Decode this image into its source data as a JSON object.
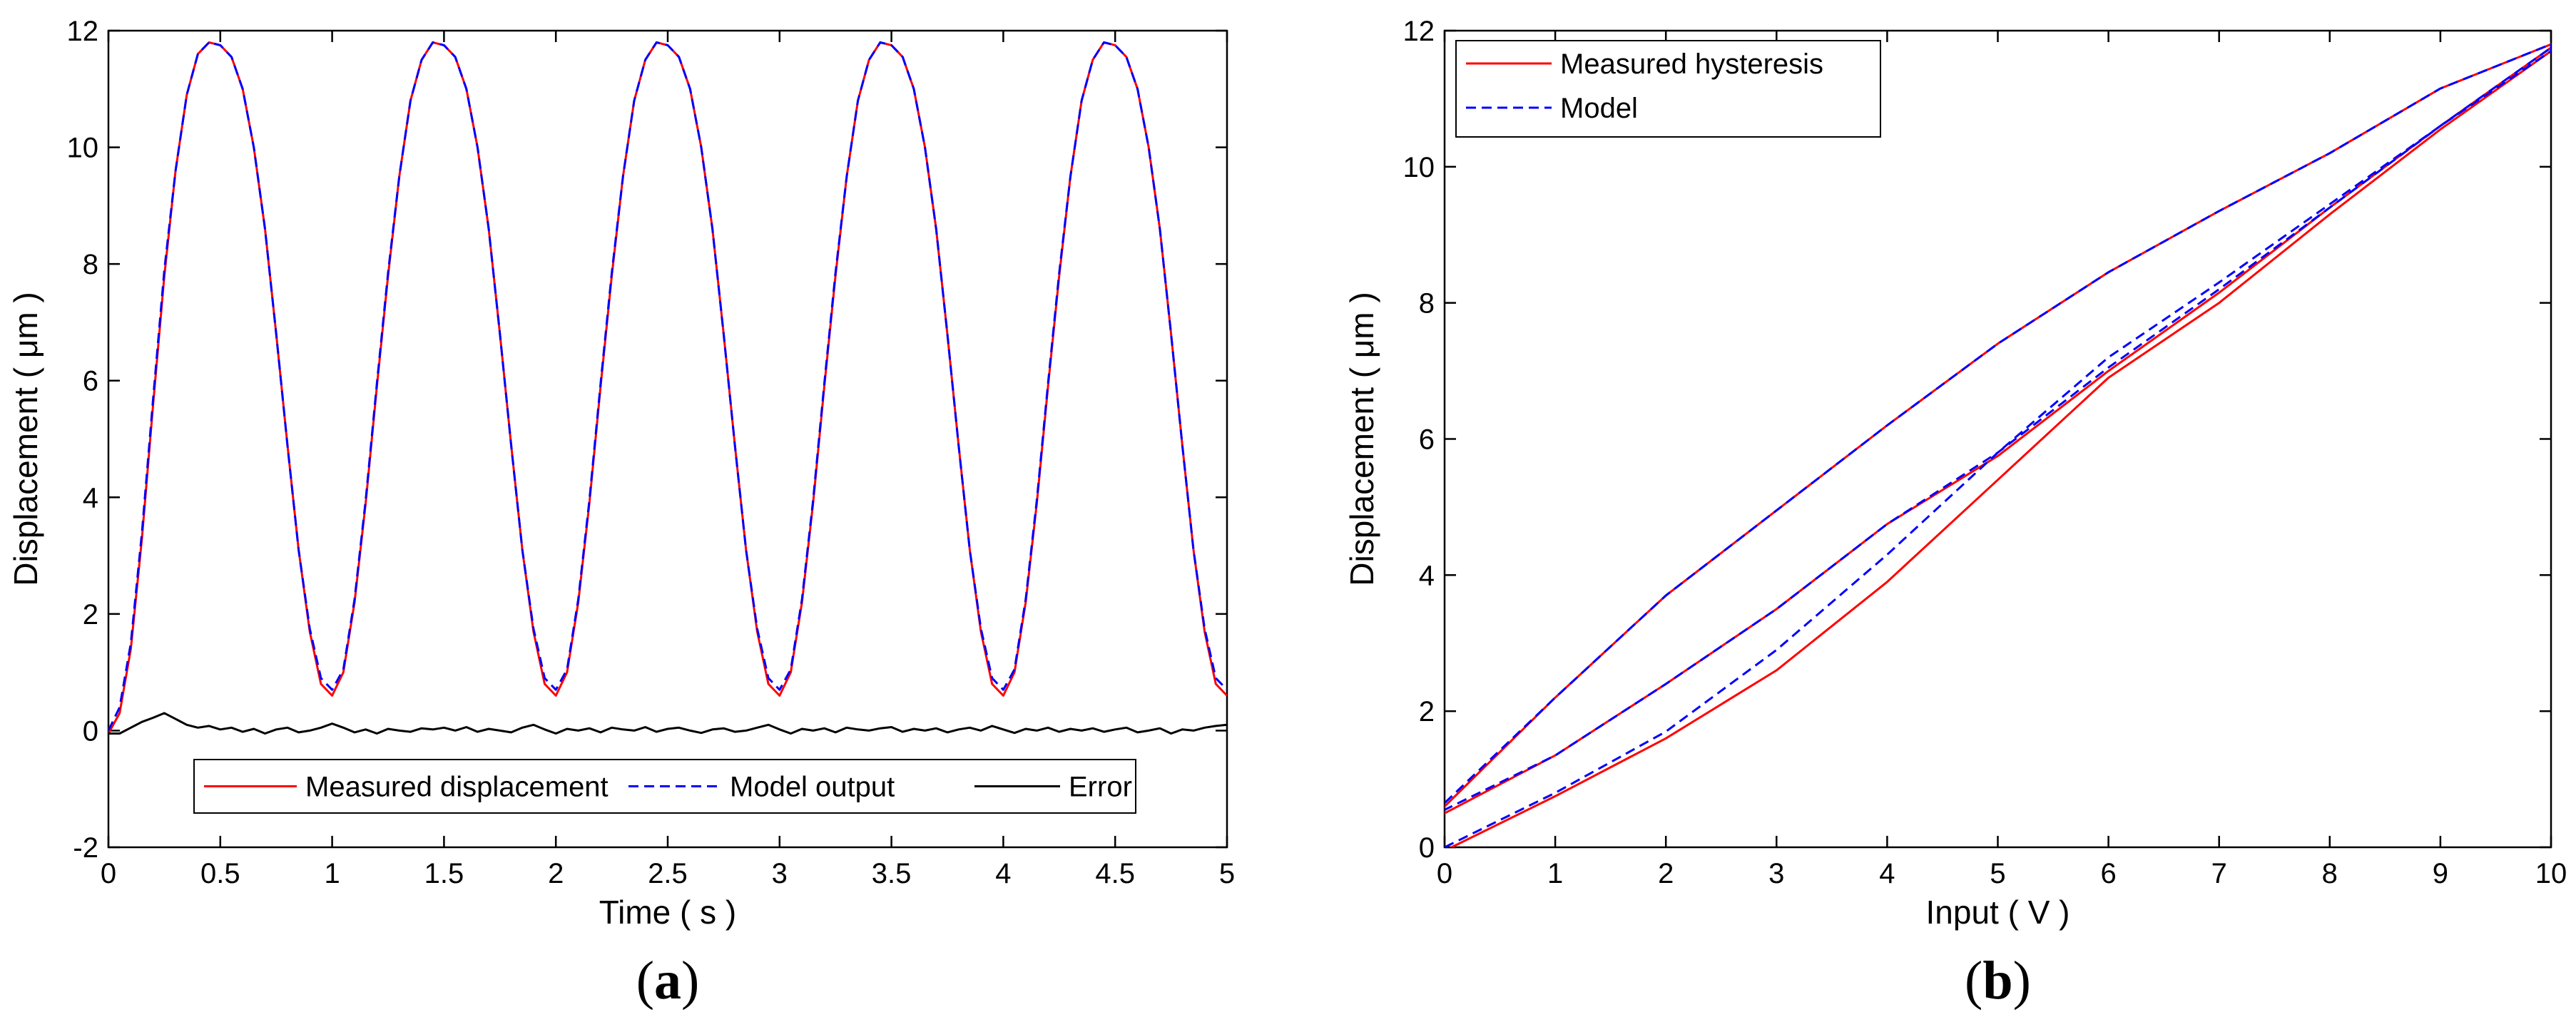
{
  "chart_data": [
    {
      "type": "line",
      "panel_label": "a",
      "xlabel": "Time ( s )",
      "ylabel": "Displacement ( μm )",
      "xlim": [
        0,
        5
      ],
      "ylim": [
        -2,
        12
      ],
      "xticks": [
        0,
        0.5,
        1,
        1.5,
        2,
        2.5,
        3,
        3.5,
        4,
        4.5,
        5
      ],
      "xtick_labels": [
        "0",
        "0.5",
        "1",
        "1.5",
        "2",
        "2.5",
        "3",
        "3.5",
        "4",
        "4.5",
        "5"
      ],
      "yticks": [
        -2,
        0,
        2,
        4,
        6,
        8,
        10,
        12
      ],
      "ytick_labels": [
        "-2",
        "0",
        "2",
        "4",
        "6",
        "8",
        "10",
        "12"
      ],
      "legend_position": "bottom-center",
      "legend": [
        {
          "name": "Measured displacement",
          "color": "#ff0000",
          "dash": "solid"
        },
        {
          "name": "Model output",
          "color": "#0000ff",
          "dash": "dashed"
        },
        {
          "name": "Error",
          "color": "#000000",
          "dash": "solid"
        }
      ],
      "series": [
        {
          "name": "Measured displacement",
          "color": "#ff0000",
          "x": [
            0.0,
            0.05,
            0.1,
            0.15,
            0.2,
            0.25,
            0.3,
            0.35,
            0.4,
            0.45,
            0.5,
            0.55,
            0.6,
            0.65,
            0.7,
            0.75,
            0.8,
            0.85,
            0.9,
            0.95,
            1.0,
            1.05,
            1.1,
            1.15,
            1.2,
            1.25,
            1.3,
            1.35,
            1.4,
            1.45,
            1.5,
            1.55,
            1.6,
            1.65,
            1.7,
            1.75,
            1.8,
            1.85,
            1.9,
            1.95,
            2.0,
            2.05,
            2.1,
            2.15,
            2.2,
            2.25,
            2.3,
            2.35,
            2.4,
            2.45,
            2.5,
            2.55,
            2.6,
            2.65,
            2.7,
            2.75,
            2.8,
            2.85,
            2.9,
            2.95,
            3.0,
            3.05,
            3.1,
            3.15,
            3.2,
            3.25,
            3.3,
            3.35,
            3.4,
            3.45,
            3.5,
            3.55,
            3.6,
            3.65,
            3.7,
            3.75,
            3.8,
            3.85,
            3.9,
            3.95,
            4.0,
            4.05,
            4.1,
            4.15,
            4.2,
            4.25,
            4.3,
            4.35,
            4.4,
            4.45,
            4.5,
            4.55,
            4.6,
            4.65,
            4.7,
            4.75,
            4.8,
            4.85,
            4.9,
            4.95,
            5.0
          ],
          "y": [
            -0.05,
            0.3,
            1.4,
            3.3,
            5.6,
            7.8,
            9.6,
            10.9,
            11.6,
            11.8,
            11.75,
            11.55,
            11.0,
            10.0,
            8.6,
            6.8,
            4.9,
            3.1,
            1.7,
            0.8,
            0.6,
            1.0,
            2.2,
            3.9,
            5.9,
            7.8,
            9.5,
            10.8,
            11.5,
            11.8,
            11.75,
            11.55,
            11.0,
            10.0,
            8.6,
            6.8,
            4.9,
            3.1,
            1.7,
            0.8,
            0.6,
            1.0,
            2.2,
            3.9,
            5.9,
            7.8,
            9.5,
            10.8,
            11.5,
            11.8,
            11.75,
            11.55,
            11.0,
            10.0,
            8.6,
            6.8,
            4.9,
            3.1,
            1.7,
            0.8,
            0.6,
            1.0,
            2.2,
            3.9,
            5.9,
            7.8,
            9.5,
            10.8,
            11.5,
            11.8,
            11.75,
            11.55,
            11.0,
            10.0,
            8.6,
            6.8,
            4.9,
            3.1,
            1.7,
            0.8,
            0.6,
            1.0,
            2.2,
            3.9,
            5.9,
            7.8,
            9.5,
            10.8,
            11.5,
            11.8,
            11.75,
            11.55,
            11.0,
            10.0,
            8.6,
            6.8,
            4.9,
            3.1,
            1.7,
            0.8,
            0.6
          ]
        },
        {
          "name": "Model output",
          "color": "#0000ff",
          "x": [
            0.0,
            0.05,
            0.1,
            0.15,
            0.2,
            0.25,
            0.3,
            0.35,
            0.4,
            0.45,
            0.5,
            0.55,
            0.6,
            0.65,
            0.7,
            0.75,
            0.8,
            0.85,
            0.9,
            0.95,
            1.0,
            1.05,
            1.1,
            1.15,
            1.2,
            1.25,
            1.3,
            1.35,
            1.4,
            1.45,
            1.5,
            1.55,
            1.6,
            1.65,
            1.7,
            1.75,
            1.8,
            1.85,
            1.9,
            1.95,
            2.0,
            2.05,
            2.1,
            2.15,
            2.2,
            2.25,
            2.3,
            2.35,
            2.4,
            2.45,
            2.5,
            2.55,
            2.6,
            2.65,
            2.7,
            2.75,
            2.8,
            2.85,
            2.9,
            2.95,
            3.0,
            3.05,
            3.1,
            3.15,
            3.2,
            3.25,
            3.3,
            3.35,
            3.4,
            3.45,
            3.5,
            3.55,
            3.6,
            3.65,
            3.7,
            3.75,
            3.8,
            3.85,
            3.9,
            3.95,
            4.0,
            4.05,
            4.1,
            4.15,
            4.2,
            4.25,
            4.3,
            4.35,
            4.4,
            4.45,
            4.5,
            4.55,
            4.6,
            4.65,
            4.7,
            4.75,
            4.8,
            4.85,
            4.9,
            4.95,
            5.0
          ],
          "y": [
            0.0,
            0.4,
            1.5,
            3.4,
            5.7,
            7.9,
            9.6,
            10.9,
            11.6,
            11.8,
            11.75,
            11.55,
            11.0,
            10.0,
            8.6,
            6.8,
            4.9,
            3.1,
            1.75,
            0.9,
            0.7,
            1.05,
            2.25,
            3.95,
            5.95,
            7.85,
            9.5,
            10.8,
            11.5,
            11.8,
            11.75,
            11.55,
            11.0,
            10.0,
            8.6,
            6.8,
            4.9,
            3.1,
            1.75,
            0.9,
            0.7,
            1.05,
            2.25,
            3.95,
            5.95,
            7.85,
            9.5,
            10.8,
            11.5,
            11.8,
            11.75,
            11.55,
            11.0,
            10.0,
            8.6,
            6.8,
            4.9,
            3.1,
            1.75,
            0.9,
            0.7,
            1.05,
            2.25,
            3.95,
            5.95,
            7.85,
            9.5,
            10.8,
            11.5,
            11.8,
            11.75,
            11.55,
            11.0,
            10.0,
            8.6,
            6.8,
            4.9,
            3.1,
            1.75,
            0.9,
            0.7,
            1.05,
            2.25,
            3.95,
            5.95,
            7.85,
            9.5,
            10.8,
            11.5,
            11.8,
            11.75,
            11.55,
            11.0,
            10.0,
            8.6,
            6.8,
            4.9,
            3.1,
            1.75,
            0.9,
            0.7
          ]
        },
        {
          "name": "Error",
          "color": "#000000",
          "x": [
            0.0,
            0.05,
            0.1,
            0.15,
            0.2,
            0.25,
            0.3,
            0.35,
            0.4,
            0.45,
            0.5,
            0.55,
            0.6,
            0.65,
            0.7,
            0.75,
            0.8,
            0.85,
            0.9,
            0.95,
            1.0,
            1.05,
            1.1,
            1.15,
            1.2,
            1.25,
            1.3,
            1.35,
            1.4,
            1.45,
            1.5,
            1.55,
            1.6,
            1.65,
            1.7,
            1.75,
            1.8,
            1.85,
            1.9,
            1.95,
            2.0,
            2.05,
            2.1,
            2.15,
            2.2,
            2.25,
            2.3,
            2.35,
            2.4,
            2.45,
            2.5,
            2.55,
            2.6,
            2.65,
            2.7,
            2.75,
            2.8,
            2.85,
            2.9,
            2.95,
            3.0,
            3.05,
            3.1,
            3.15,
            3.2,
            3.25,
            3.3,
            3.35,
            3.4,
            3.45,
            3.5,
            3.55,
            3.6,
            3.65,
            3.7,
            3.75,
            3.8,
            3.85,
            3.9,
            3.95,
            4.0,
            4.05,
            4.1,
            4.15,
            4.2,
            4.25,
            4.3,
            4.35,
            4.4,
            4.45,
            4.5,
            4.55,
            4.6,
            4.65,
            4.7,
            4.75,
            4.8,
            4.85,
            4.9,
            4.95,
            5.0
          ],
          "y": [
            -0.05,
            -0.05,
            0.05,
            0.15,
            0.22,
            0.3,
            0.2,
            0.1,
            0.05,
            0.08,
            0.02,
            0.05,
            -0.02,
            0.03,
            -0.05,
            0.02,
            0.05,
            -0.03,
            0.0,
            0.05,
            0.12,
            0.05,
            -0.03,
            0.02,
            -0.05,
            0.03,
            0.0,
            -0.02,
            0.04,
            0.02,
            0.05,
            0.0,
            0.06,
            -0.02,
            0.03,
            0.0,
            -0.03,
            0.05,
            0.1,
            0.02,
            -0.05,
            0.03,
            0.0,
            0.04,
            -0.03,
            0.05,
            0.02,
            0.0,
            0.06,
            -0.02,
            0.03,
            0.05,
            0.0,
            -0.04,
            0.02,
            0.04,
            -0.02,
            0.0,
            0.05,
            0.1,
            0.02,
            -0.05,
            0.03,
            0.0,
            0.04,
            -0.03,
            0.05,
            0.02,
            0.0,
            0.04,
            0.06,
            -0.02,
            0.03,
            0.0,
            0.04,
            -0.03,
            0.02,
            0.05,
            0.0,
            0.08,
            0.02,
            -0.04,
            0.03,
            0.0,
            0.05,
            -0.02,
            0.03,
            0.0,
            0.04,
            -0.02,
            0.02,
            0.05,
            -0.03,
            0.0,
            0.04,
            -0.05,
            0.02,
            0.0,
            0.05,
            0.08,
            0.1
          ]
        }
      ]
    },
    {
      "type": "line",
      "panel_label": "b",
      "xlabel": "Input ( V )",
      "ylabel": "Displacement ( μm )",
      "xlim": [
        0,
        10
      ],
      "ylim": [
        0,
        12
      ],
      "xticks": [
        0,
        1,
        2,
        3,
        4,
        5,
        6,
        7,
        8,
        9,
        10
      ],
      "xtick_labels": [
        "0",
        "1",
        "2",
        "3",
        "4",
        "5",
        "6",
        "7",
        "8",
        "9",
        "10"
      ],
      "yticks": [
        0,
        2,
        4,
        6,
        8,
        10,
        12
      ],
      "ytick_labels": [
        "0",
        "2",
        "4",
        "6",
        "8",
        "10",
        "12"
      ],
      "legend_position": "top-left",
      "legend": [
        {
          "name": "Measured hysteresis",
          "color": "#ff0000",
          "dash": "solid"
        },
        {
          "name": "Model",
          "color": "#0000ff",
          "dash": "dashed"
        }
      ],
      "series": [
        {
          "name": "Measured hysteresis",
          "color": "#ff0000",
          "x": [
            0,
            1,
            2,
            3,
            4,
            5,
            6,
            7,
            8,
            9,
            10,
            10,
            9,
            8,
            7,
            6,
            5,
            4,
            3,
            2,
            1,
            0,
            0,
            1,
            2,
            3,
            4,
            5,
            6,
            7,
            8,
            9,
            10
          ],
          "y": [
            -0.05,
            0.75,
            1.6,
            2.6,
            3.9,
            5.4,
            6.9,
            8.0,
            9.3,
            10.55,
            11.7,
            11.8,
            11.15,
            10.2,
            9.35,
            8.45,
            7.4,
            6.2,
            4.95,
            3.7,
            2.2,
            0.6,
            0.5,
            1.35,
            2.4,
            3.5,
            4.75,
            5.75,
            7.0,
            8.15,
            9.4,
            10.6,
            11.75
          ]
        },
        {
          "name": "Model",
          "color": "#0000ff",
          "x": [
            0,
            1,
            2,
            3,
            4,
            5,
            6,
            7,
            8,
            9,
            10,
            10,
            9,
            8,
            7,
            6,
            5,
            4,
            3,
            2,
            1,
            0,
            0,
            1,
            2,
            3,
            4,
            5,
            6,
            7,
            8,
            9,
            10
          ],
          "y": [
            0.0,
            0.8,
            1.7,
            2.9,
            4.3,
            5.8,
            7.2,
            8.3,
            9.45,
            10.6,
            11.7,
            11.8,
            11.15,
            10.2,
            9.35,
            8.45,
            7.4,
            6.2,
            4.95,
            3.7,
            2.2,
            0.65,
            0.55,
            1.35,
            2.4,
            3.5,
            4.75,
            5.8,
            7.05,
            8.2,
            9.4,
            10.6,
            11.75
          ]
        }
      ]
    }
  ]
}
